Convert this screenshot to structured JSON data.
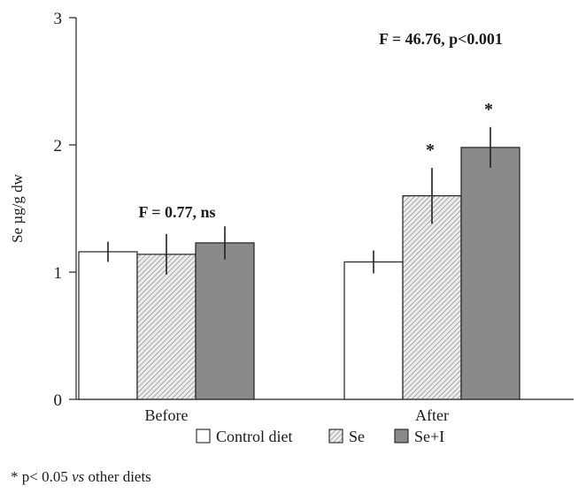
{
  "chart_data": {
    "type": "bar",
    "ylabel": "Se µg/g dw",
    "ylim": [
      0,
      3
    ],
    "yticks": [
      0,
      1,
      2,
      3
    ],
    "categories": [
      "Before",
      "After"
    ],
    "series": [
      {
        "name": "Control diet",
        "values": [
          1.16,
          1.08
        ],
        "errors": [
          0.08,
          0.09
        ],
        "fill": "#ffffff",
        "pattern": "none"
      },
      {
        "name": "Se",
        "values": [
          1.14,
          1.6
        ],
        "errors": [
          0.16,
          0.22
        ],
        "fill": "#d9d9d9",
        "pattern": "hatch"
      },
      {
        "name": "Se+I",
        "values": [
          1.23,
          1.98
        ],
        "errors": [
          0.13,
          0.16
        ],
        "fill": "#8a8a8a",
        "pattern": "none"
      }
    ],
    "significance_markers": [
      {
        "category": "After",
        "series": "Se",
        "label": "*"
      },
      {
        "category": "After",
        "series": "Se+I",
        "label": "*"
      }
    ],
    "annotations": [
      {
        "text": "F = 0.77, ns",
        "category": "Before"
      },
      {
        "text": "F = 46.76, p<0.001",
        "category": "After"
      }
    ],
    "legend_position": "bottom",
    "grid": false
  },
  "footnote": {
    "prefix": "* p< 0.05 ",
    "italic": "vs",
    "suffix": " other diets"
  }
}
